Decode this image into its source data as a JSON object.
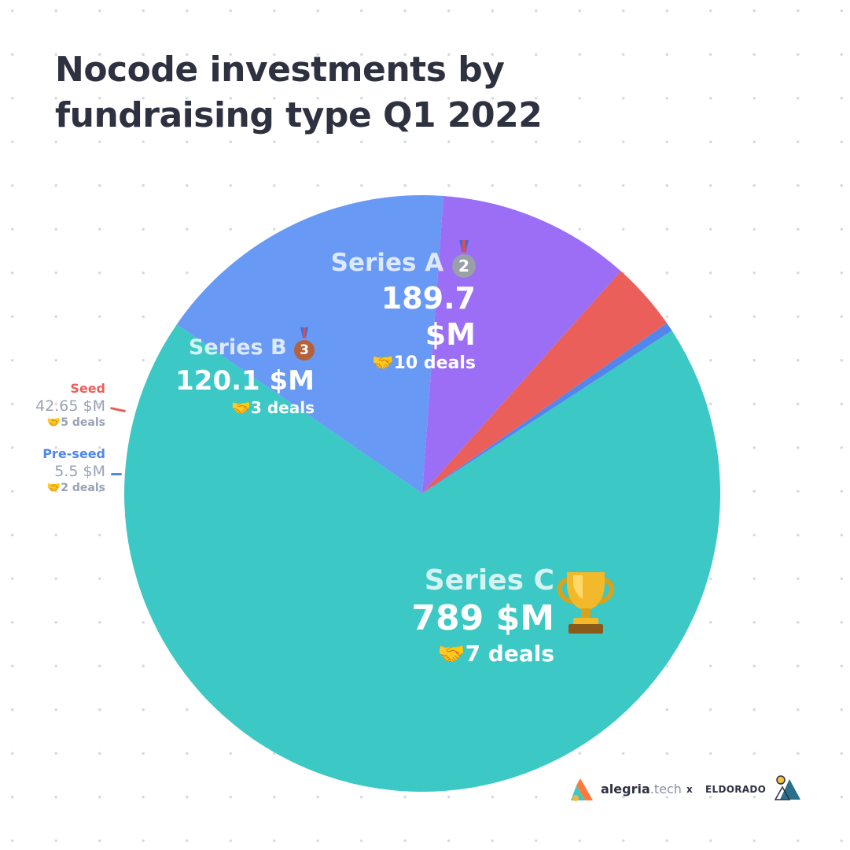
{
  "title_line1": "Nocode investments by",
  "title_line2": "fundraising type Q1 2022",
  "chart_data": {
    "type": "pie",
    "title": "Nocode investments by fundraising type Q1 2022",
    "unit": "$M",
    "slices": [
      {
        "name": "Series C",
        "value": 789,
        "value_label": "789 $M",
        "deals_label": "7 deals",
        "color": "#3cc8c4",
        "badge": "trophy-icon"
      },
      {
        "name": "Series A",
        "value": 189.7,
        "value_label": "189.7 $M",
        "deals_label": "10 deals",
        "color": "#6799f5",
        "badge": "silver-medal-icon",
        "rank": "2"
      },
      {
        "name": "Series B",
        "value": 120.1,
        "value_label": "120.1 $M",
        "deals_label": "3 deals",
        "color": "#9b6ef5",
        "badge": "bronze-medal-icon",
        "rank": "3"
      },
      {
        "name": "Seed",
        "value": 42.65,
        "value_label": "42.65 $M",
        "deals_label": "5 deals",
        "color": "#ea5f5a"
      },
      {
        "name": "Pre-seed",
        "value": 5.5,
        "value_label": "5.5 $M",
        "deals_label": "2 deals",
        "color": "#5186ec"
      }
    ]
  },
  "footer": {
    "brand1": "alegria",
    "brand1_suffix": ".tech",
    "separator": "x",
    "brand2": "ELDORADO"
  }
}
